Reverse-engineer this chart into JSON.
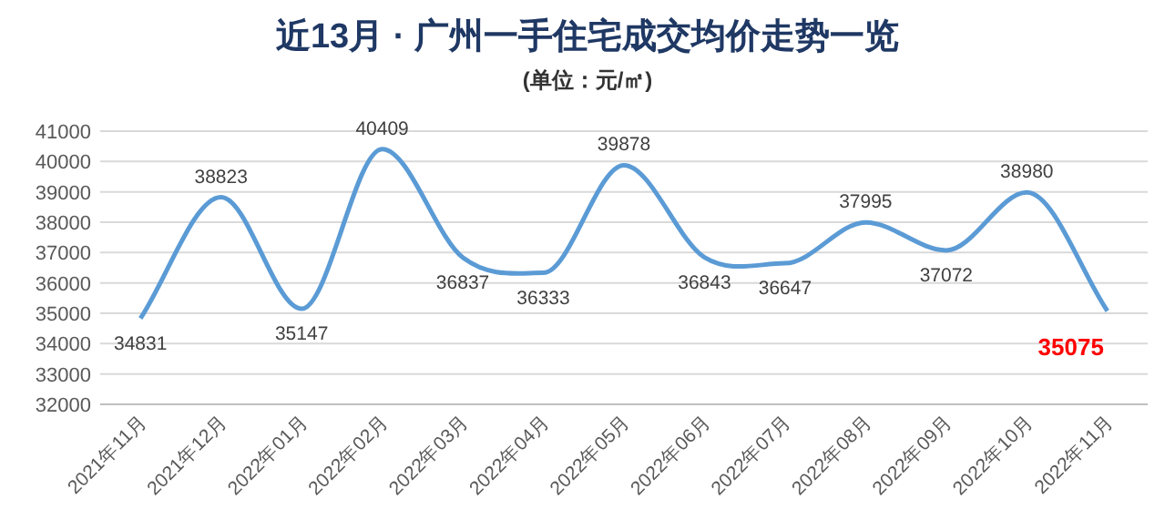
{
  "chart_data": {
    "type": "line",
    "title": "近13月 · 广州一手住宅成交均价走势一览",
    "subtitle": "(单位：元/㎡)",
    "categories": [
      "2021年11月",
      "2021年12月",
      "2022年01月",
      "2022年02月",
      "2022年03月",
      "2022年04月",
      "2022年05月",
      "2022年06月",
      "2022年07月",
      "2022年08月",
      "2022年09月",
      "2022年10月",
      "2022年11月"
    ],
    "series": [
      {
        "color": "#5b9bd5",
        "values": [
          34831,
          38823,
          35147,
          40409,
          36837,
          36333,
          39878,
          36843,
          36647,
          37995,
          37072,
          38980,
          35075
        ]
      }
    ],
    "ylim": [
      32000,
      41000
    ],
    "yticks": [
      32000,
      33000,
      34000,
      35000,
      36000,
      37000,
      38000,
      39000,
      40000,
      41000
    ],
    "grid": "y",
    "data_labels": true,
    "marker": "none",
    "line_style": "solid"
  }
}
